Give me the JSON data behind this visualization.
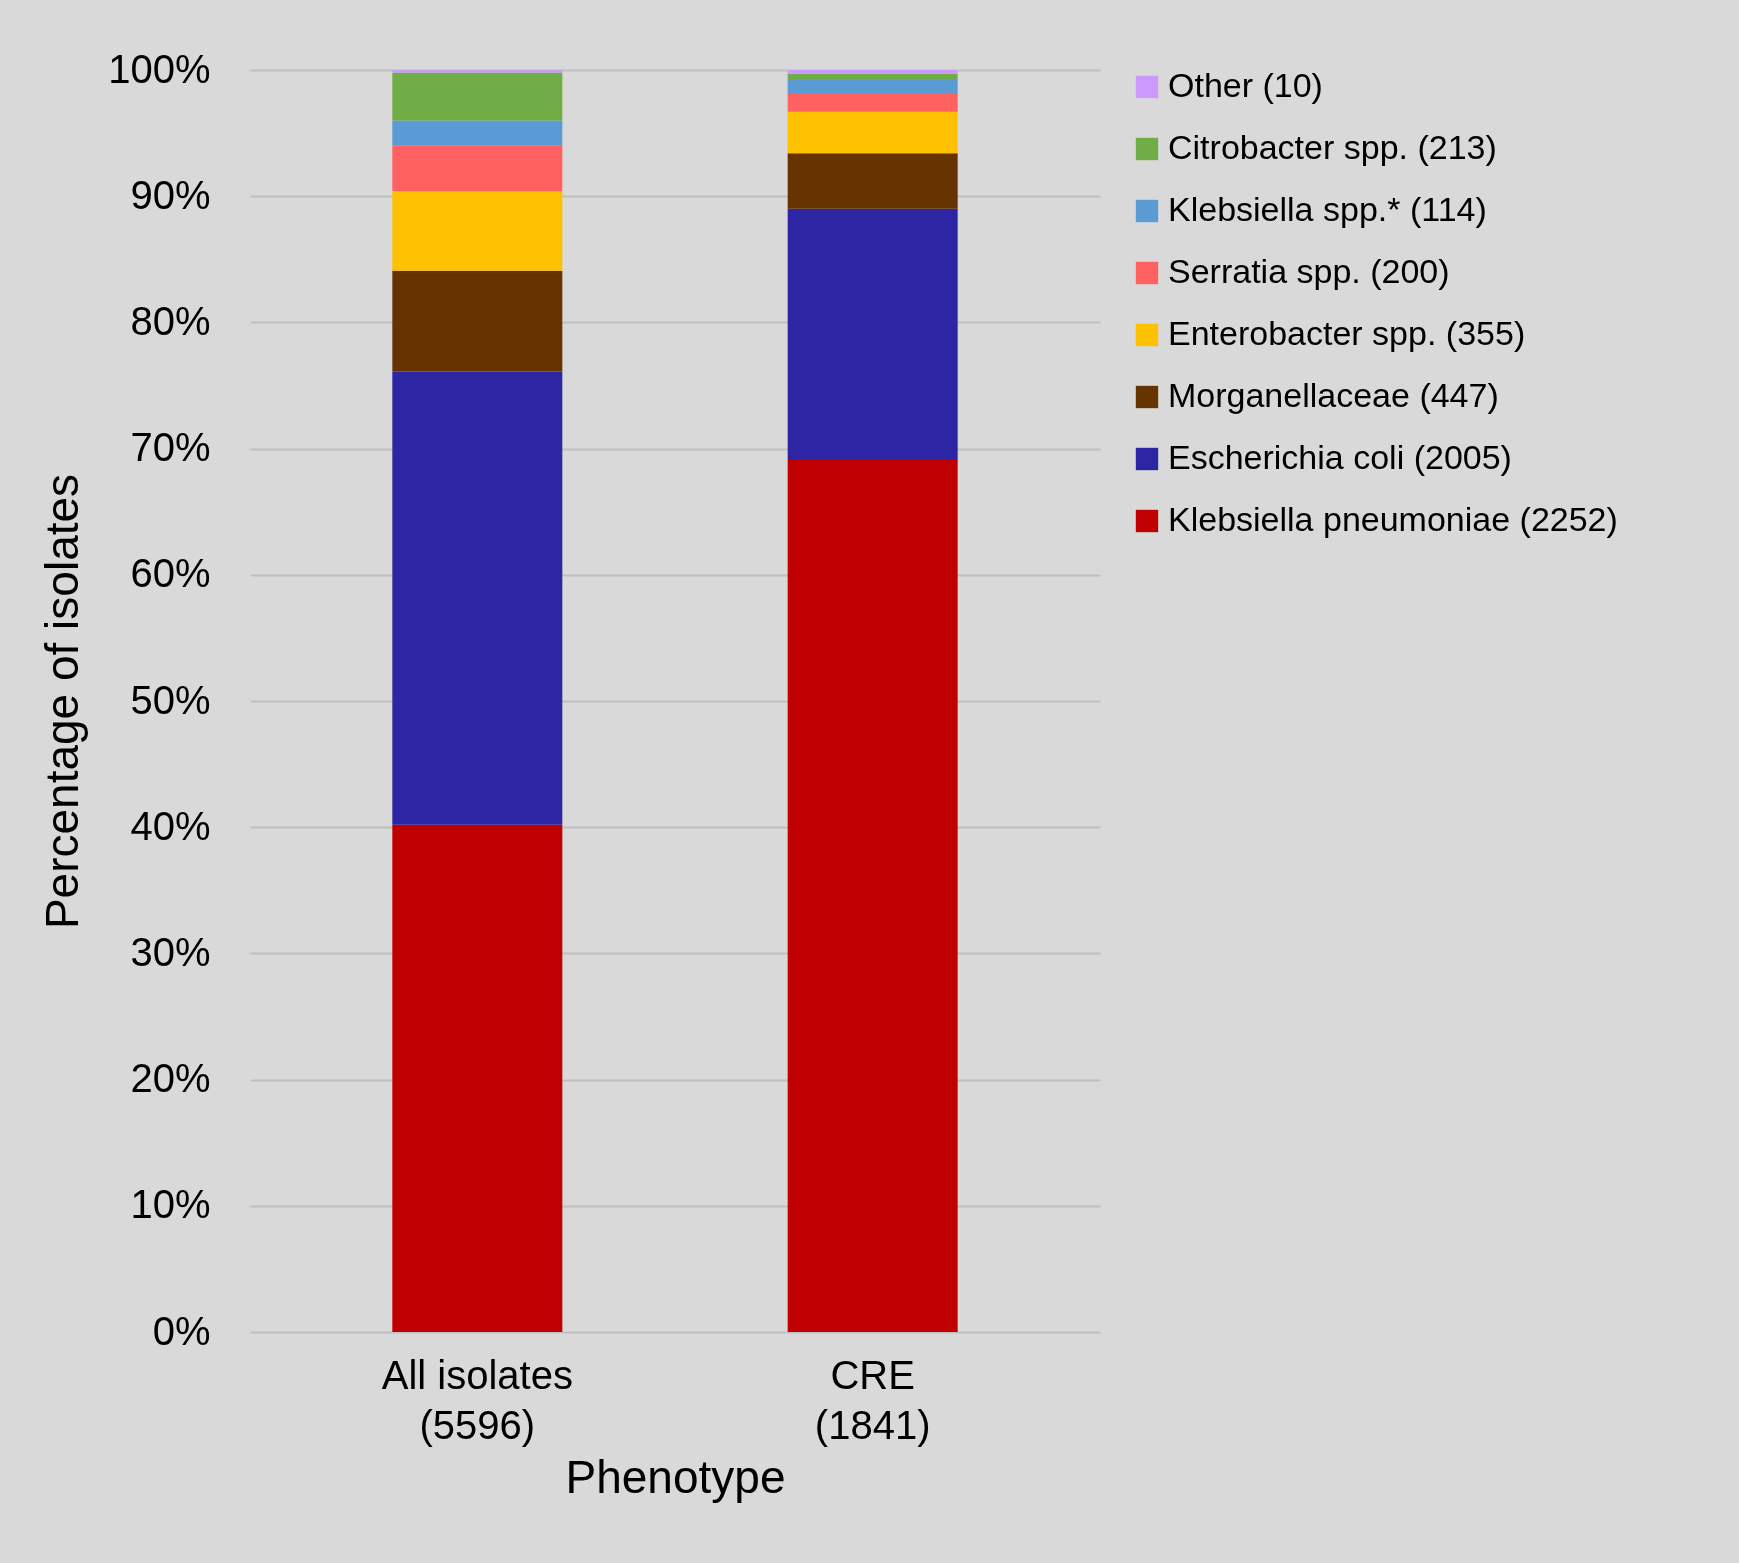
{
  "chart_data": {
    "type": "bar",
    "stacked": true,
    "xlabel": "Phenotype",
    "ylabel": "Percentage of isolates",
    "categories": [
      "All isolates\n(5596)",
      "CRE\n(1841)"
    ],
    "series": [
      {
        "name": "Klebsiella pneumoniae (2252)",
        "color": "#c00000",
        "values": [
          40.2,
          69.1
        ]
      },
      {
        "name": "Escherichia coli (2005)",
        "color": "#2e25a4",
        "values": [
          35.9,
          19.9
        ]
      },
      {
        "name": "Morganellaceae (447)",
        "color": "#663300",
        "values": [
          8.0,
          4.4
        ]
      },
      {
        "name": "Enterobacter spp. (355)",
        "color": "#ffc000",
        "values": [
          6.3,
          3.3
        ]
      },
      {
        "name": "Serratia spp. (200)",
        "color": "#ff6161",
        "values": [
          3.6,
          1.4
        ]
      },
      {
        "name": "Klebsiella spp.* (114)",
        "color": "#5b9bd5",
        "values": [
          2.0,
          1.1
        ]
      },
      {
        "name": "Citrobacter spp. (213)",
        "color": "#70ad47",
        "values": [
          3.8,
          0.5
        ]
      },
      {
        "name": "Other (10)",
        "color": "#cc99ff",
        "values": [
          0.2,
          0.3
        ]
      }
    ],
    "ylim": [
      0,
      100
    ],
    "yticks": [
      {
        "value": 0,
        "label": "0%"
      },
      {
        "value": 10,
        "label": "10%"
      },
      {
        "value": 20,
        "label": "20%"
      },
      {
        "value": 30,
        "label": "30%"
      },
      {
        "value": 40,
        "label": "40%"
      },
      {
        "value": 50,
        "label": "50%"
      },
      {
        "value": 60,
        "label": "60%"
      },
      {
        "value": 70,
        "label": "70%"
      },
      {
        "value": 80,
        "label": "80%"
      },
      {
        "value": 90,
        "label": "90%"
      },
      {
        "value": 100,
        "label": "100%"
      }
    ],
    "grid": "y",
    "legend": "right"
  }
}
